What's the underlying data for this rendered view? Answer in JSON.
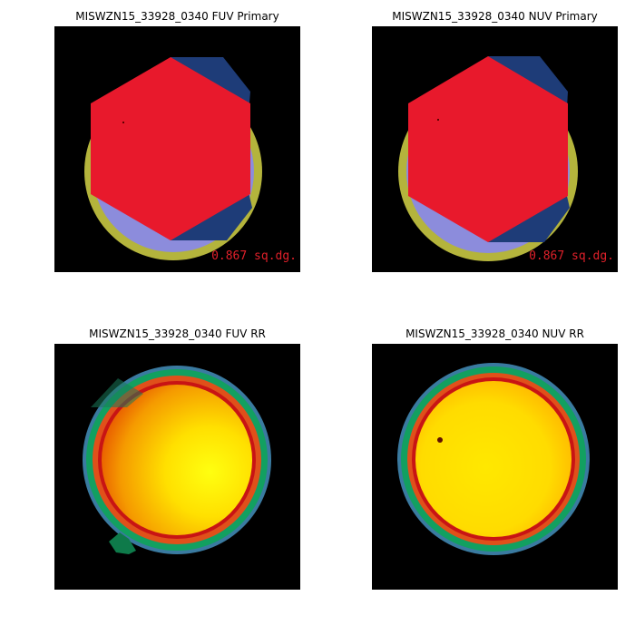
{
  "colors": {
    "background": "#ffffff",
    "panel_background": "#000000",
    "hexagon_red": "#e8192c",
    "olive_ring": "#b4b43c",
    "lavender": "#8c8cdc",
    "navy": "#1e3c78",
    "area_label": "#e0202a"
  },
  "panels": [
    {
      "title": "MISWZN15_33928_0340 FUV Primary",
      "area_label": "0.867 sq.dg."
    },
    {
      "title": "MISWZN15_33928_0340 NUV Primary",
      "area_label": "0.867 sq.dg."
    },
    {
      "title": "MISWZN15_33928_0340 FUV RR"
    },
    {
      "title": "MISWZN15_33928_0340 NUV RR"
    }
  ]
}
